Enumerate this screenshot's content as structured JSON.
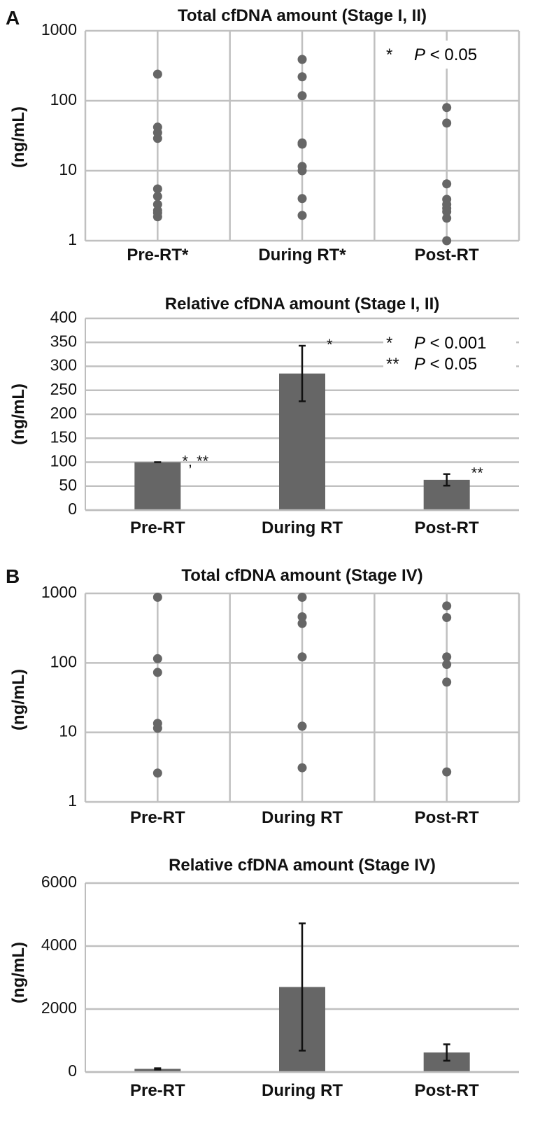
{
  "panel_labels": [
    "A",
    "B"
  ],
  "chart_data": [
    {
      "type": "scatter",
      "title": "Total cfDNA amount (Stage I, II)",
      "ylabel": "(ng/mL)",
      "yscale": "log",
      "ylim": [
        1,
        1000
      ],
      "yticks": [
        "1",
        "10",
        "100",
        "1000"
      ],
      "categories": [
        "Pre-RT*",
        "During RT*",
        "Post-RT"
      ],
      "grid": "both",
      "points": [
        [
          240,
          42,
          35,
          29,
          5.5,
          4.3,
          3.3,
          2.7,
          2.5,
          2.2
        ],
        [
          390,
          220,
          118,
          25,
          24,
          11.5,
          10,
          4,
          2.3
        ],
        [
          80,
          48,
          6.5,
          3.9,
          3.3,
          2.9,
          2.6,
          2.1,
          1.0
        ]
      ],
      "annotations": [
        {
          "star": "*",
          "p": "P",
          "text": " < 0.05"
        }
      ]
    },
    {
      "type": "bar",
      "title": "Relative cfDNA amount (Stage I, II)",
      "ylabel": "(ng/mL)",
      "ylim": [
        0,
        400
      ],
      "yticks": [
        "0",
        "50",
        "100",
        "150",
        "200",
        "250",
        "300",
        "350",
        "400"
      ],
      "categories": [
        "Pre-RT",
        "During RT",
        "Post-RT"
      ],
      "values": [
        100,
        285,
        63
      ],
      "errors": [
        0,
        58,
        12
      ],
      "bar_labels": [
        "*, **",
        "*",
        "**"
      ],
      "annotations": [
        {
          "star": "*",
          "p": "P",
          "text": " < 0.001"
        },
        {
          "star": "**",
          "p": "P",
          "text": " < 0.05"
        }
      ]
    },
    {
      "type": "scatter",
      "title": "Total cfDNA amount (Stage IV)",
      "ylabel": "(ng/mL)",
      "yscale": "log",
      "ylim": [
        1,
        1000
      ],
      "yticks": [
        "1",
        "10",
        "100",
        "1000"
      ],
      "categories": [
        "Pre-RT",
        "During RT",
        "Post-RT"
      ],
      "grid": "both",
      "points": [
        [
          880,
          115,
          73,
          13.5,
          11.5,
          2.6
        ],
        [
          880,
          460,
          370,
          122,
          12.3,
          3.1
        ],
        [
          660,
          450,
          122,
          95,
          53,
          2.7
        ]
      ]
    },
    {
      "type": "bar",
      "title": "Relative cfDNA amount (Stage IV)",
      "ylabel": "(ng/mL)",
      "ylim": [
        0,
        6000
      ],
      "yticks": [
        "0",
        "2000",
        "4000",
        "6000"
      ],
      "categories": [
        "Pre-RT",
        "During RT",
        "Post-RT"
      ],
      "values": [
        100,
        2700,
        620
      ],
      "errors": [
        20,
        2020,
        260
      ]
    }
  ],
  "colors": {
    "marker": "#666666",
    "bar": "#666666",
    "grid": "#c0c0c0",
    "axis": "#bdbdbd",
    "error": "#111111"
  }
}
